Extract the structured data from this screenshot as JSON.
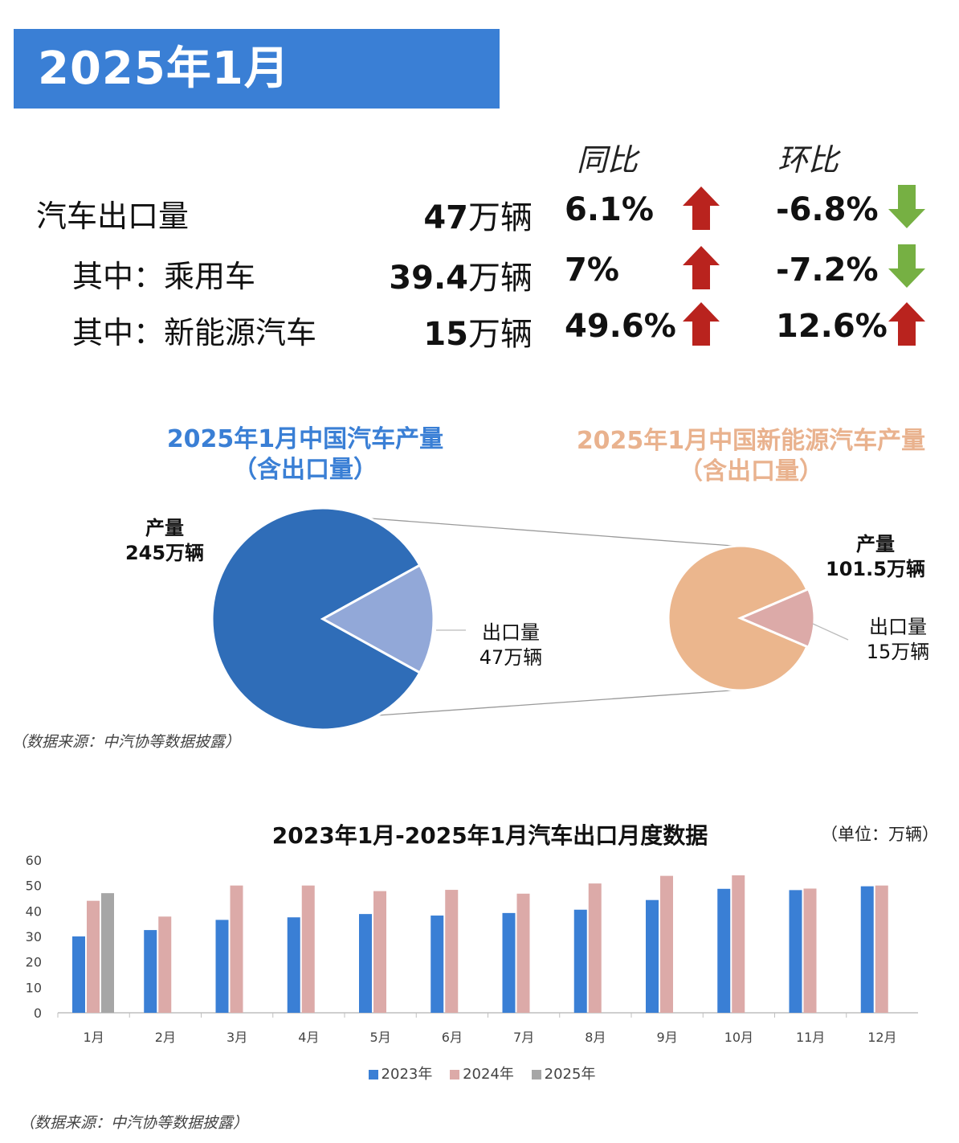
{
  "banner": {
    "title": "2025年1月"
  },
  "table": {
    "header_yoy": "同比",
    "header_mom": "环比",
    "rows": [
      {
        "label": "汽车出口量",
        "number": "47",
        "unit": "万辆",
        "yoy": "6.1%",
        "yoy_dir": "up",
        "mom": "-6.8%",
        "mom_dir": "down"
      },
      {
        "label": "其中：乘用车",
        "number": "39.4",
        "unit": "万辆",
        "yoy": "7%",
        "yoy_dir": "up",
        "mom": "-7.2%",
        "mom_dir": "down"
      },
      {
        "label": "其中：新能源汽车",
        "number": "15",
        "unit": "万辆",
        "yoy": "49.6%",
        "yoy_dir": "up",
        "mom": "12.6%",
        "mom_dir": "up"
      }
    ],
    "colors": {
      "up": "#b9231e",
      "down": "#76b043"
    }
  },
  "chart_data": [
    {
      "type": "pie",
      "title": "2025年1月中国汽车产量",
      "subtitle": "（含出口量）",
      "title_color": "#3a7fd5",
      "slices": [
        {
          "label": "产量",
          "value_text": "245万辆",
          "value": 245,
          "color": "#2f6db8"
        },
        {
          "label": "出口量",
          "value_text": "47万辆",
          "value": 47,
          "color": "#92a8d8"
        }
      ]
    },
    {
      "type": "pie",
      "title": "2025年1月中国新能源汽车产量",
      "subtitle": "（含出口量）",
      "title_color": "#e9b28e",
      "slices": [
        {
          "label": "产量",
          "value_text": "101.5万辆",
          "value": 101.5,
          "color": "#ebb68d"
        },
        {
          "label": "出口量",
          "value_text": "15万辆",
          "value": 15,
          "color": "#dcaaa8"
        }
      ]
    },
    {
      "type": "bar",
      "title": "2023年1月-2025年1月汽车出口月度数据",
      "unit_note": "（单位：万辆）",
      "categories": [
        "1月",
        "2月",
        "3月",
        "4月",
        "5月",
        "6月",
        "7月",
        "8月",
        "9月",
        "10月",
        "11月",
        "12月"
      ],
      "ylim": [
        0,
        60
      ],
      "yticks": [
        0,
        10,
        20,
        30,
        40,
        50,
        60
      ],
      "series": [
        {
          "name": "2023年",
          "color": "#3a7fd5",
          "values": [
            30,
            32.5,
            36.5,
            37.5,
            38.8,
            38.2,
            39.2,
            40.5,
            44.3,
            48.7,
            48.2,
            49.7
          ]
        },
        {
          "name": "2024年",
          "color": "#dcaaa8",
          "values": [
            44,
            37.8,
            50,
            50,
            47.8,
            48.3,
            46.8,
            50.8,
            53.8,
            54,
            48.8,
            50
          ]
        },
        {
          "name": "2025年",
          "color": "#a6a6a6",
          "values": [
            47,
            null,
            null,
            null,
            null,
            null,
            null,
            null,
            null,
            null,
            null,
            null
          ]
        }
      ]
    }
  ],
  "sources": {
    "note": "（数据来源：中汽协等数据披露）"
  }
}
